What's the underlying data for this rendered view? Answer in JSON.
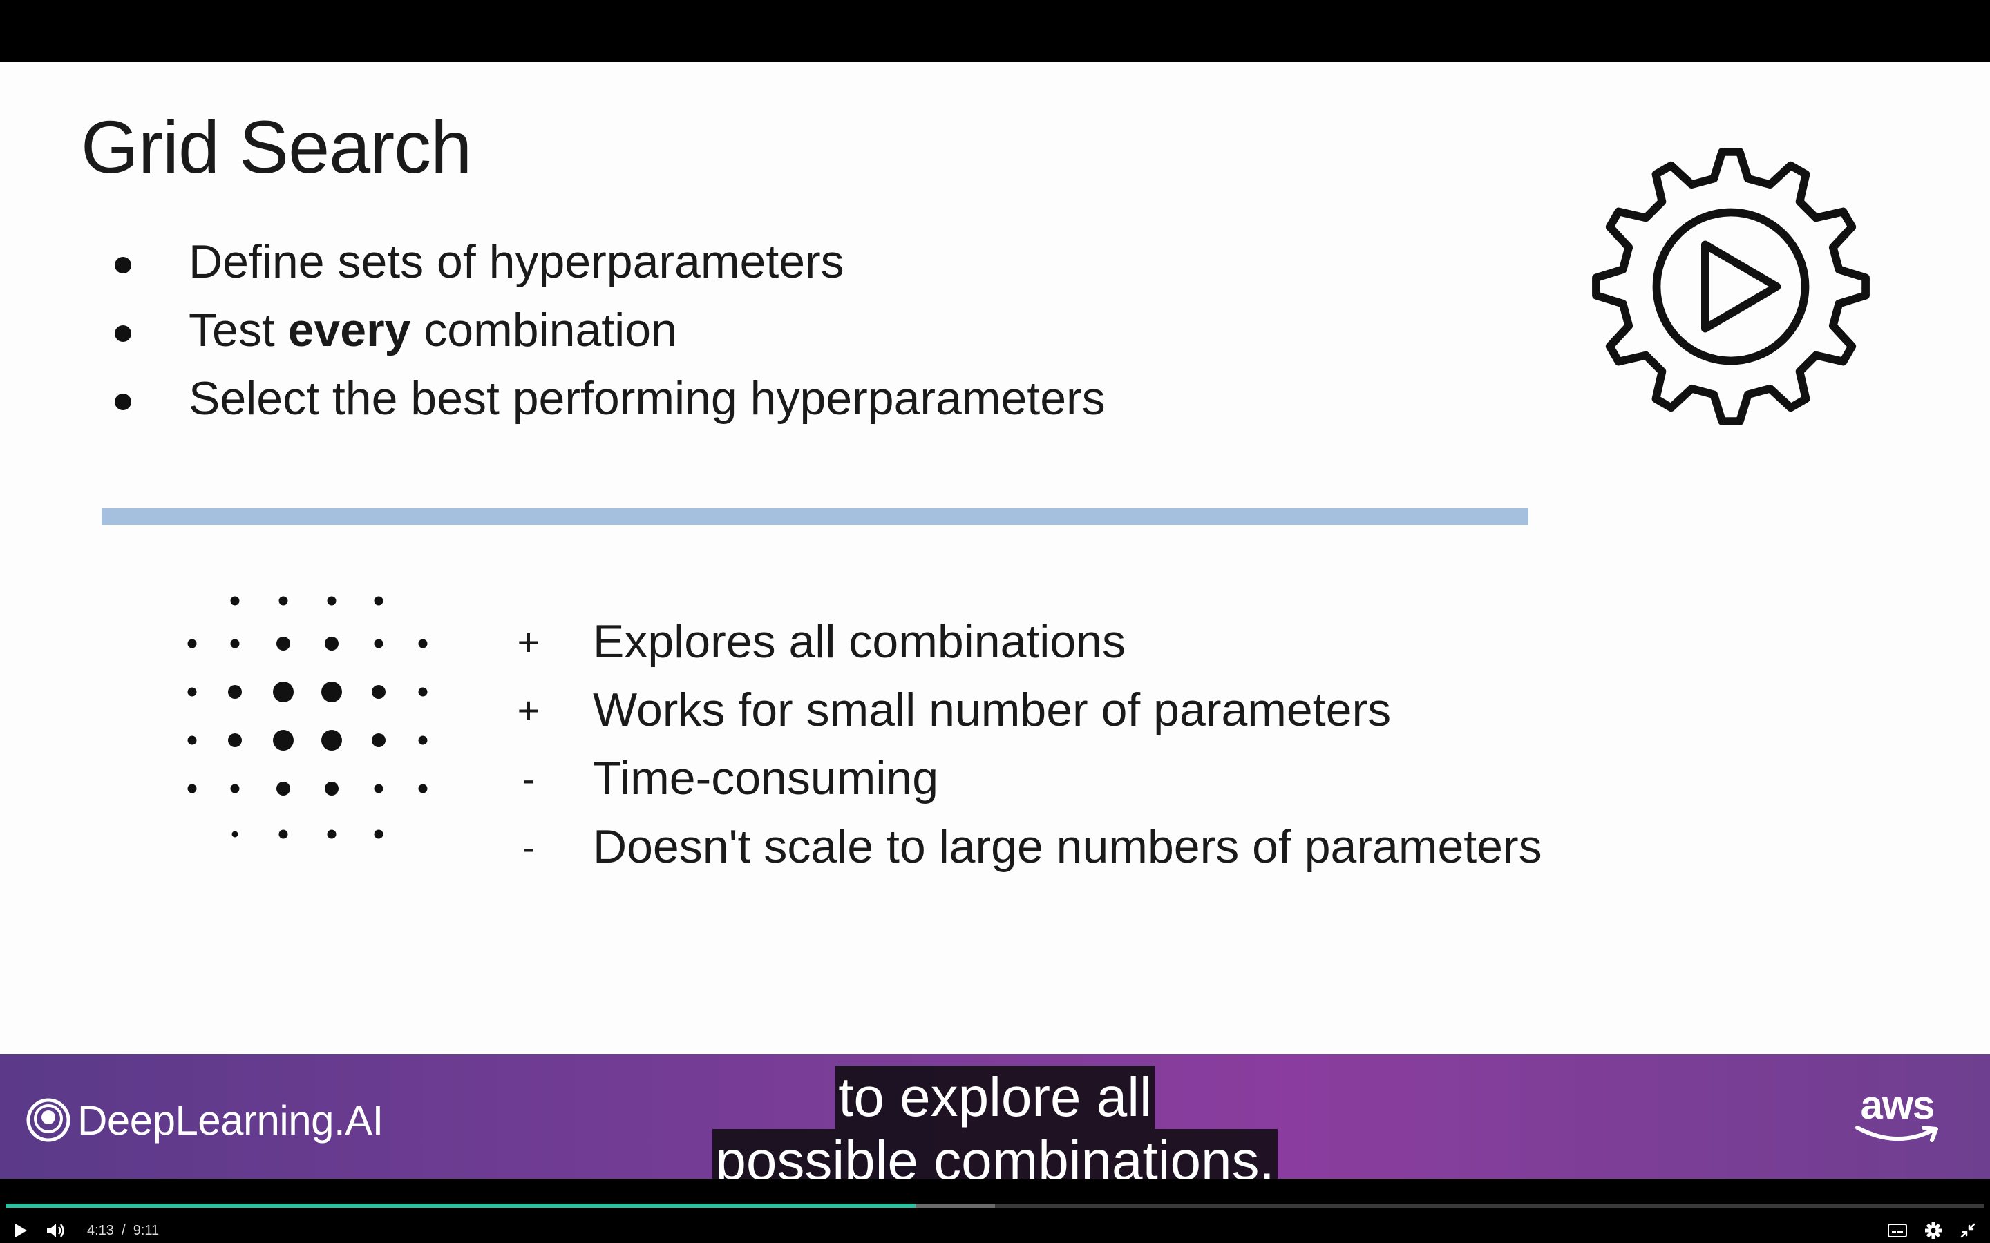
{
  "slide": {
    "title": "Grid Search",
    "bullets": [
      {
        "pre": "Define sets of hyperparameters",
        "bold": "",
        "post": ""
      },
      {
        "pre": "Test ",
        "bold": "every",
        "post": " combination"
      },
      {
        "pre": "Select the best performing hyperparameters",
        "bold": "",
        "post": ""
      }
    ],
    "pros_cons": [
      {
        "sign": "+",
        "text": "Explores all combinations"
      },
      {
        "sign": "+",
        "text": "Works for small number of parameters"
      },
      {
        "sign": "-",
        "text": "Time-consuming"
      },
      {
        "sign": "-",
        "text": "Doesn't scale to large numbers of parameters"
      }
    ],
    "divider_color": "#a5bfdf",
    "icon": "gear-play-icon",
    "illustration": "dot-grid-icon"
  },
  "footer": {
    "brand": "DeepLearning.AI",
    "partner": "aws",
    "colors": {
      "left": "#5b3a89",
      "right": "#8a3d9e"
    }
  },
  "captions": {
    "lines": [
      "to explore all",
      "possible combinations."
    ]
  },
  "player": {
    "current_time": "4:13",
    "duration": "9:11",
    "played_fraction": 0.46,
    "buffered_fraction": 0.5,
    "accent": "#27c3a0",
    "icons": [
      "play-icon",
      "volume-icon",
      "captions-icon",
      "settings-icon",
      "exit-fullscreen-icon"
    ]
  }
}
